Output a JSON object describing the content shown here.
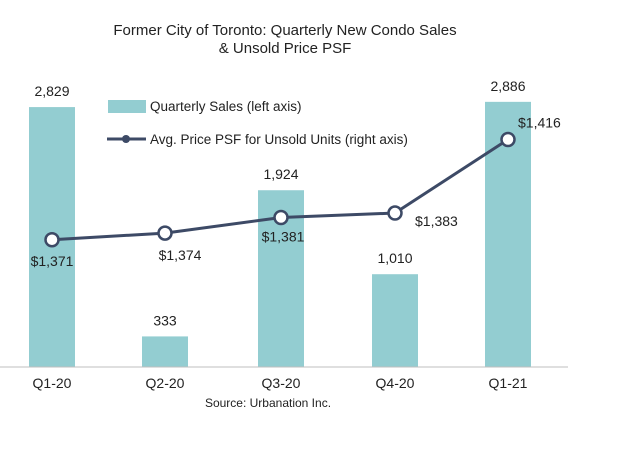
{
  "chart_data": {
    "type": "bar",
    "title": [
      "Former City of Toronto: Quarterly New Condo Sales",
      "& Unsold Price PSF"
    ],
    "categories": [
      "Q1-20",
      "Q2-20",
      "Q3-20",
      "Q4-20",
      "Q1-21"
    ],
    "series": [
      {
        "name": "Quarterly Sales (left axis)",
        "type": "bar",
        "axis": "left",
        "values": [
          2829,
          333,
          1924,
          1010,
          2886
        ],
        "labels": [
          "2,829",
          "333",
          "1,924",
          "1,010",
          "2,886"
        ],
        "color": "#93cdd1"
      },
      {
        "name": "Avg. Price PSF for Unsold Units (right axis)",
        "type": "line",
        "axis": "right",
        "values": [
          1371,
          1374,
          1381,
          1383,
          1416
        ],
        "labels": [
          "$1,371",
          "$1,374",
          "$1,381",
          "$1,383",
          "$1,416"
        ],
        "color": "#3d4a66"
      }
    ],
    "ylim_left": [
      0,
      3200
    ],
    "ylim_right": [
      1300,
      1440
    ],
    "grid": false,
    "legend_position": "top-left",
    "source": "Source: Urbanation Inc."
  }
}
